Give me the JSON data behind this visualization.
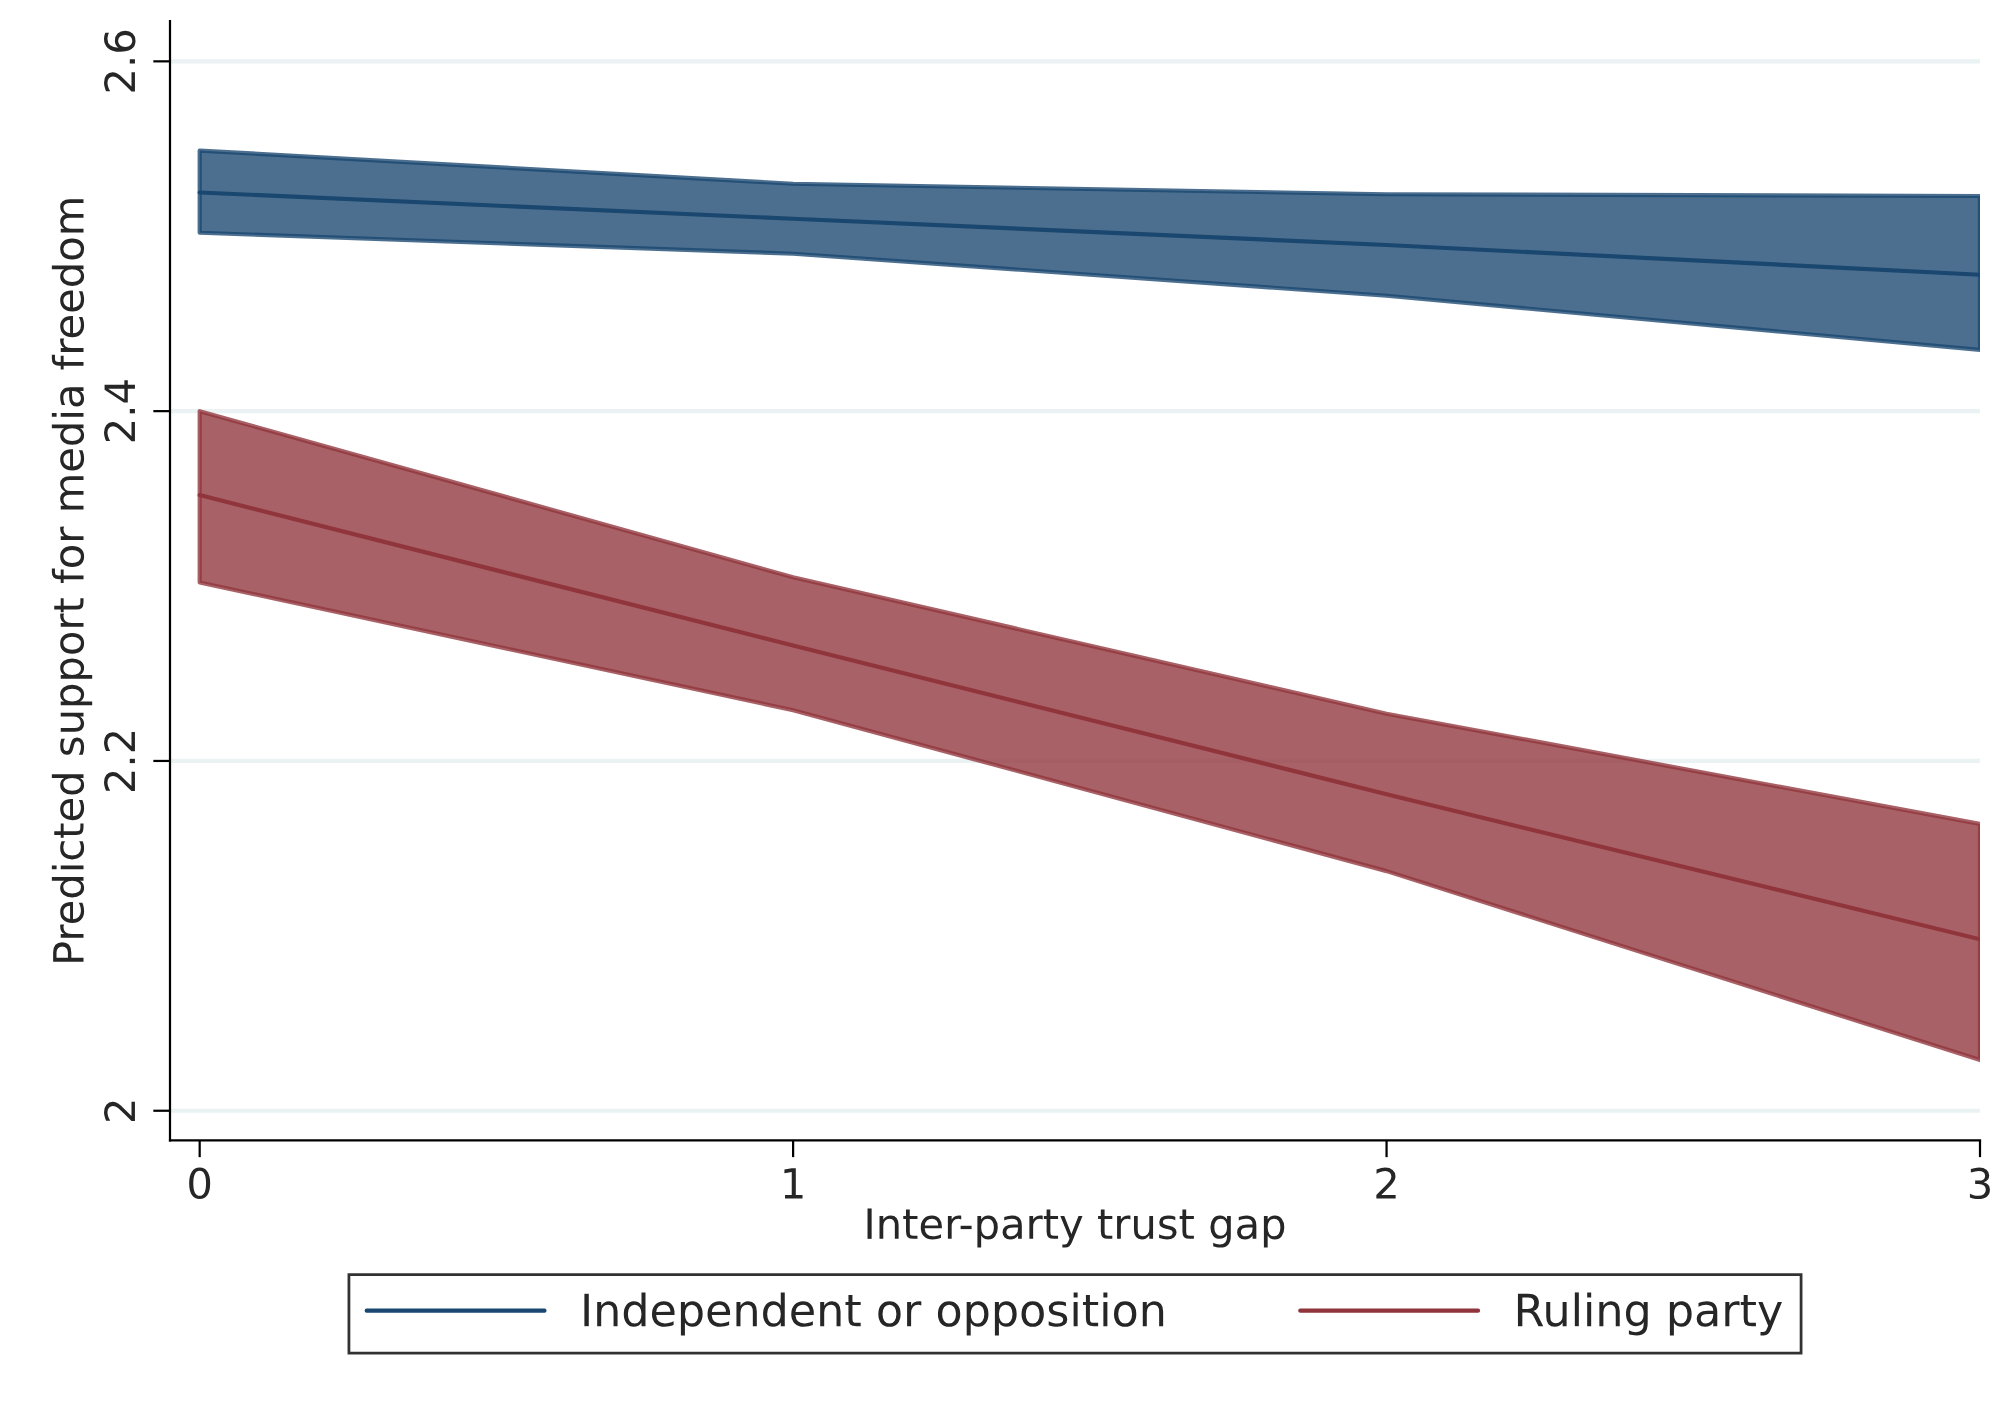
{
  "chart_data": {
    "type": "line",
    "xlabel": "Inter-party trust gap",
    "ylabel": "Predicted support for media freedom",
    "x": [
      0,
      1,
      2,
      3
    ],
    "xlim": [
      -0.05,
      3
    ],
    "xticks": [
      0,
      1,
      2,
      3
    ],
    "ylim": [
      1.983,
      2.623
    ],
    "yticks": [
      2,
      2.2,
      2.4,
      2.6
    ],
    "grid": "y",
    "legend": "bottom",
    "marker": "none",
    "line_style": "solid",
    "series": [
      {
        "name": "Independent or opposition",
        "color": "#1a476f",
        "values": [
          2.525,
          2.51,
          2.495,
          2.478
        ],
        "lower": [
          2.502,
          2.49,
          2.466,
          2.435
        ],
        "upper": [
          2.549,
          2.53,
          2.524,
          2.523
        ]
      },
      {
        "name": "Ruling party",
        "color": "#90353b",
        "values": [
          2.352,
          2.266,
          2.181,
          2.098
        ],
        "lower": [
          2.302,
          2.229,
          2.137,
          2.029
        ],
        "upper": [
          2.4,
          2.305,
          2.227,
          2.164
        ]
      }
    ]
  }
}
